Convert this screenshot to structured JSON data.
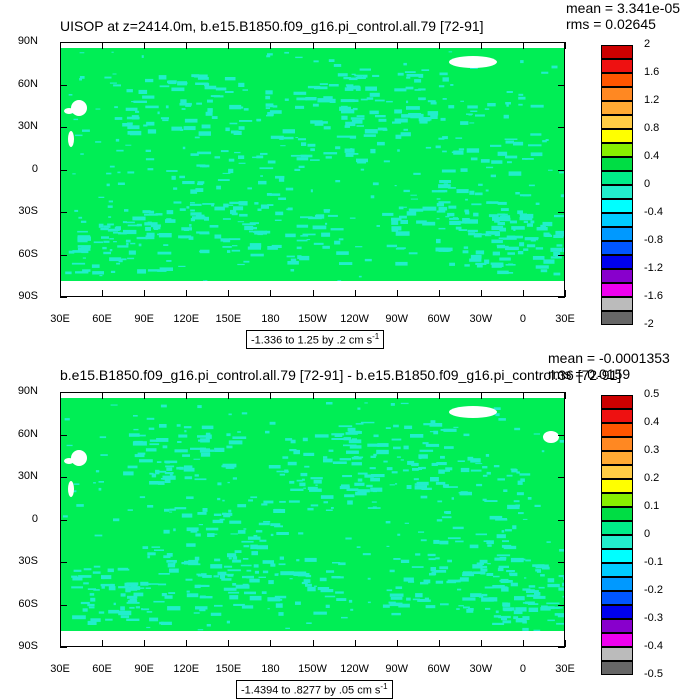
{
  "colors": {
    "land": "#ffffff",
    "ocean_zero": "#00ee55",
    "ocean_neg": "#22eecc",
    "bg": "#ffffff"
  },
  "chart_data": [
    {
      "type": "heatmap",
      "title": "UISOP at z=2414.0m, b.e15.B1850.f09_g16.pi_control.all.79 [72-91]",
      "mean": "mean = 3.341e-05",
      "rms": "rms = 0.02645",
      "range_label": "-1.336 to 1.25 by .2 cm s",
      "range_unit_exp": "-1",
      "y_ticks": [
        "90N",
        "60N",
        "30N",
        "0",
        "30S",
        "60S",
        "90S"
      ],
      "x_ticks": [
        "30E",
        "60E",
        "90E",
        "120E",
        "150E",
        "180",
        "150W",
        "120W",
        "90W",
        "60W",
        "30W",
        "0",
        "30E"
      ],
      "colorbar_labels": [
        "2",
        "1.6",
        "1.2",
        "0.8",
        "0.4",
        "0",
        "-0.4",
        "-0.8",
        "-1.2",
        "-1.6",
        "-2"
      ],
      "colorbar_colors": [
        "#cc0000",
        "#ee1111",
        "#ff5500",
        "#ff8822",
        "#ffaa33",
        "#ffcc44",
        "#ffff00",
        "#88ee00",
        "#00dd44",
        "#00ee88",
        "#22eecc",
        "#00ffff",
        "#00ccff",
        "#0099ff",
        "#0055ff",
        "#0000ee",
        "#8800cc",
        "#ee00ee",
        "#bbbbbb",
        "#666666"
      ]
    },
    {
      "type": "heatmap",
      "title": "b.e15.B1850.f09_g16.pi_control.all.79 [72-91] - b.e15.B1850.f09_g16.pi_control.36 [72-91]",
      "mean": "mean = -0.0001353",
      "rms": "rms = 0.0159",
      "range_label": "-1.4394 to .8277 by .05 cm s",
      "range_unit_exp": "-1",
      "y_ticks": [
        "90N",
        "60N",
        "30N",
        "0",
        "30S",
        "60S",
        "90S"
      ],
      "x_ticks": [
        "30E",
        "60E",
        "90E",
        "120E",
        "150E",
        "180",
        "150W",
        "120W",
        "90W",
        "60W",
        "30W",
        "0",
        "30E"
      ],
      "colorbar_labels": [
        "0.5",
        "0.4",
        "0.3",
        "0.2",
        "0.1",
        "0",
        "-0.1",
        "-0.2",
        "-0.3",
        "-0.4",
        "-0.5"
      ],
      "colorbar_colors": [
        "#cc0000",
        "#ee1111",
        "#ff5500",
        "#ff8822",
        "#ffaa33",
        "#ffcc44",
        "#ffff00",
        "#88ee00",
        "#00dd44",
        "#00ee88",
        "#22eecc",
        "#00ffff",
        "#00ccff",
        "#0099ff",
        "#0055ff",
        "#0000ee",
        "#8800cc",
        "#ee00ee",
        "#bbbbbb",
        "#666666"
      ]
    }
  ]
}
